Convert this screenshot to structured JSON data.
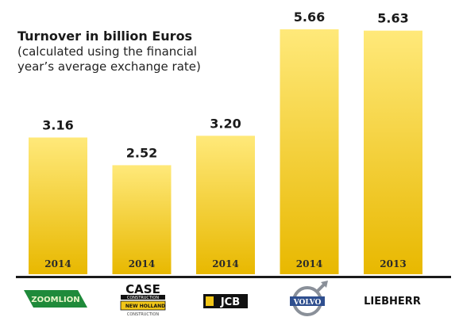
{
  "chart_data": {
    "type": "bar",
    "title": "Turnover in billion Euros",
    "subtitle_lines": [
      "(calculated using the financial",
      "year’s average exchange rate)"
    ],
    "categories": [
      "ZOOMLION",
      "CASE / NEW HOLLAND",
      "JCB",
      "VOLVO",
      "LIEBHERR"
    ],
    "values": [
      3.16,
      2.52,
      3.2,
      5.66,
      5.63
    ],
    "value_labels": [
      "3.16",
      "2.52",
      "3.20",
      "5.66",
      "5.63"
    ],
    "years": [
      "2014",
      "2014",
      "2014",
      "2014",
      "2013"
    ],
    "ylim": [
      0,
      5.66
    ],
    "grid": false,
    "legend": "none",
    "bar_color": "#f2c618",
    "bar_gradient": [
      "#ffe97a",
      "#e8b800"
    ]
  },
  "logos": {
    "zoomlion": "ZOOMLION",
    "case_top": "CASE",
    "case_sub": "CONSTRUCTION",
    "newholland": "NEW HOLLAND",
    "newholland_sub": "CONSTRUCTION",
    "jcb": "JCB",
    "volvo": "VOLVO",
    "liebherr": "LIEBHERR"
  }
}
